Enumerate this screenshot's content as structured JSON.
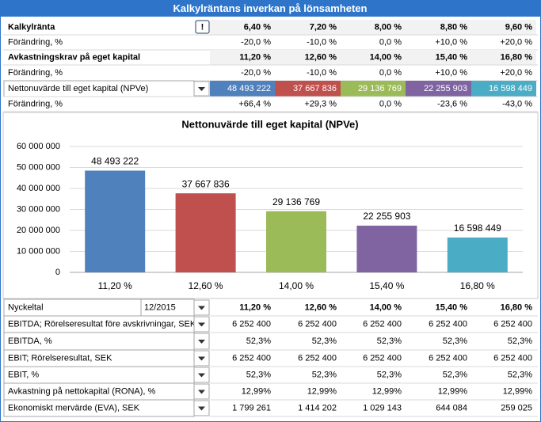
{
  "header": {
    "title": "Kalkylräntans inverkan på lönsamheten",
    "info_icon": "!"
  },
  "top_table": {
    "rows": [
      {
        "label": "Kalkylränta",
        "cells": [
          "6,40 %",
          "7,20 %",
          "8,00 %",
          "8,80 %",
          "9,60 %"
        ]
      },
      {
        "label": "Förändring, %",
        "cells": [
          "-20,0 %",
          "-10,0 %",
          "0,0 %",
          "+10,0 %",
          "+20,0 %"
        ]
      },
      {
        "label": "Avkastningskrav på eget kapital",
        "cells": [
          "11,20 %",
          "12,60 %",
          "14,00 %",
          "15,40 %",
          "16,80 %"
        ]
      },
      {
        "label": "Förändring, %",
        "cells": [
          "-20,0 %",
          "-10,0 %",
          "0,0 %",
          "+10,0 %",
          "+20,0 %"
        ]
      },
      {
        "label": "Nettonuvärde till eget kapital (NPVe)",
        "cells": [
          "48 493 222",
          "37 667 836",
          "29 136 769",
          "22 255 903",
          "16 598 449"
        ]
      },
      {
        "label": "Förändring, %",
        "cells": [
          "+66,4 %",
          "+29,3 %",
          "0,0 %",
          "-23,6 %",
          "-43,0 %"
        ]
      }
    ]
  },
  "chart_data": {
    "type": "bar",
    "title": "Nettonuvärde till eget kapital (NPVe)",
    "categories": [
      "11,20 %",
      "12,60 %",
      "14,00 %",
      "15,40 %",
      "16,80 %"
    ],
    "values": [
      48493222,
      37667836,
      29136769,
      22255903,
      16598449
    ],
    "value_labels": [
      "48 493 222",
      "37 667 836",
      "29 136 769",
      "22 255 903",
      "16 598 449"
    ],
    "colors": [
      "#4f81bd",
      "#c0504d",
      "#9bbb59",
      "#8064a2",
      "#4bacc6"
    ],
    "ylim": [
      0,
      60000000
    ],
    "yticks": [
      0,
      {
        "value": 10000000,
        "label": "10 000 000"
      },
      {
        "value": 20000000,
        "label": "20 000 000"
      },
      {
        "value": 30000000,
        "label": "30 000 000"
      },
      {
        "value": 40000000,
        "label": "40 000 000"
      },
      {
        "value": 50000000,
        "label": "50 000 000"
      },
      {
        "value": 60000000,
        "label": "60 000 000"
      }
    ],
    "grid": true
  },
  "bottom_table": {
    "period": "12/2015",
    "rows": [
      {
        "label": "Nyckeltal",
        "cells": [
          "11,20 %",
          "12,60 %",
          "14,00 %",
          "15,40 %",
          "16,80 %"
        ]
      },
      {
        "label": "EBITDA; Rörelseresultat före avskrivningar, SEK",
        "cells": [
          "6 252 400",
          "6 252 400",
          "6 252 400",
          "6 252 400",
          "6 252 400"
        ]
      },
      {
        "label": "EBITDA, %",
        "cells": [
          "52,3%",
          "52,3%",
          "52,3%",
          "52,3%",
          "52,3%"
        ]
      },
      {
        "label": "EBIT; Rörelseresultat, SEK",
        "cells": [
          "6 252 400",
          "6 252 400",
          "6 252 400",
          "6 252 400",
          "6 252 400"
        ]
      },
      {
        "label": "EBIT, %",
        "cells": [
          "52,3%",
          "52,3%",
          "52,3%",
          "52,3%",
          "52,3%"
        ]
      },
      {
        "label": "Avkastning på nettokapital (RONA), %",
        "cells": [
          "12,99%",
          "12,99%",
          "12,99%",
          "12,99%",
          "12,99%"
        ]
      },
      {
        "label": "Ekonomiskt mervärde (EVA), SEK",
        "cells": [
          "1 799 261",
          "1 414 202",
          "1 029 143",
          "644 084",
          "259 025"
        ]
      }
    ]
  }
}
